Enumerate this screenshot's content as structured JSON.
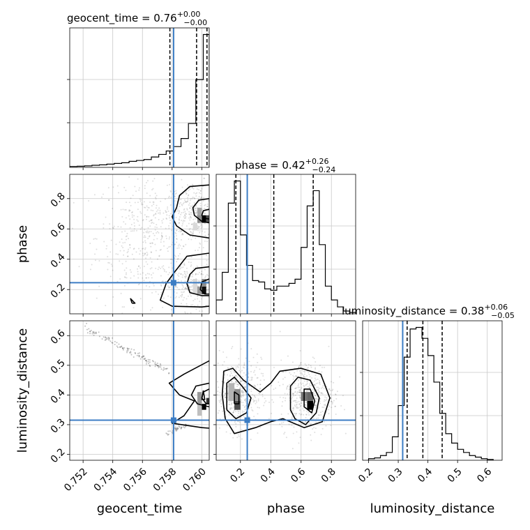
{
  "chart_data": {
    "type": "corner",
    "parameters": [
      "geocent_time",
      "phase",
      "luminosity_distance"
    ],
    "truth": {
      "geocent_time": 0.7581,
      "phase": 0.245,
      "luminosity_distance": 0.315
    },
    "truth_color": "#3c7dc4",
    "titles": [
      {
        "param": "geocent_time",
        "main": "geocent_time = 0.76",
        "up": "+0.00",
        "lo": "−0.00"
      },
      {
        "param": "phase",
        "main": "phase = 0.42",
        "up": "+0.26",
        "lo": "−0.24"
      },
      {
        "param": "luminosity_distance",
        "main": "luminosity_distance = 0.38",
        "up": "+0.06",
        "lo": "−0.05"
      }
    ],
    "xlabels": [
      "geocent_time",
      "phase",
      "luminosity_distance"
    ],
    "ylabels": [
      "phase",
      "luminosity_distance"
    ],
    "ranges": {
      "geocent_time": [
        0.7511,
        0.7605
      ],
      "phase": [
        0.04,
        0.96
      ],
      "luminosity_distance": [
        0.18,
        0.65
      ]
    },
    "ticks": {
      "geocent_time": [
        "0.752",
        "0.754",
        "0.756",
        "0.758",
        "0.760"
      ],
      "phase": [
        "0.2",
        "0.4",
        "0.6",
        "0.8"
      ],
      "luminosity_distance_x": [
        "0.2",
        "0.3",
        "0.4",
        "0.5",
        "0.6"
      ],
      "luminosity_distance_y": [
        "0.2",
        "0.3",
        "0.4",
        "0.5",
        "0.6"
      ]
    },
    "quantile_lines": {
      "geocent_time": [
        0.75785,
        0.75965,
        0.76035
      ],
      "phase": [
        0.17,
        0.42,
        0.68
      ],
      "luminosity_distance": [
        0.33,
        0.383,
        0.448
      ]
    },
    "hist_geocent_time": {
      "edges": [
        0.7511,
        0.7516,
        0.7521,
        0.7526,
        0.7531,
        0.7536,
        0.7541,
        0.7546,
        0.7551,
        0.7556,
        0.7561,
        0.7566,
        0.7571,
        0.7576,
        0.7581,
        0.7586,
        0.7591,
        0.7596,
        0.7601,
        0.7605
      ],
      "counts": [
        0.8,
        1.0,
        1.3,
        1.8,
        2.2,
        2.8,
        3.4,
        4.0,
        5.2,
        6.0,
        6.8,
        9.0,
        11.2,
        14.2,
        18.0,
        25.0,
        38.0,
        76.0,
        115.0
      ]
    },
    "hist_phase": {
      "edges": [
        0.04,
        0.08,
        0.12,
        0.16,
        0.2,
        0.24,
        0.28,
        0.32,
        0.36,
        0.4,
        0.44,
        0.48,
        0.52,
        0.56,
        0.6,
        0.64,
        0.68,
        0.72,
        0.76,
        0.8,
        0.84,
        0.88,
        0.92,
        0.96
      ],
      "counts": [
        10,
        30,
        80,
        96,
        57,
        35,
        24,
        23,
        18,
        17,
        20,
        20,
        22,
        25,
        48,
        78,
        89,
        50,
        20,
        10,
        5,
        2,
        1
      ]
    },
    "hist_luminosity_distance": {
      "edges": [
        0.2,
        0.22,
        0.24,
        0.26,
        0.28,
        0.3,
        0.32,
        0.34,
        0.36,
        0.38,
        0.4,
        0.42,
        0.44,
        0.46,
        0.48,
        0.5,
        0.52,
        0.54,
        0.56,
        0.58,
        0.6,
        0.62
      ],
      "counts": [
        1,
        1.5,
        3,
        5,
        15,
        35,
        66,
        84,
        85,
        78,
        67,
        50,
        30,
        17,
        11,
        7,
        5,
        3,
        2,
        1,
        0.5
      ]
    },
    "contours_phase_vs_time": [
      [
        [
          0.7605,
          0.89
        ],
        [
          0.7592,
          0.88
        ],
        [
          0.7585,
          0.82
        ],
        [
          0.7583,
          0.74
        ],
        [
          0.758,
          0.68
        ],
        [
          0.7583,
          0.62
        ],
        [
          0.7592,
          0.56
        ],
        [
          0.7605,
          0.54
        ]
      ],
      [
        [
          0.7605,
          0.8
        ],
        [
          0.7598,
          0.79
        ],
        [
          0.7594,
          0.74
        ],
        [
          0.7595,
          0.69
        ],
        [
          0.76,
          0.65
        ],
        [
          0.7605,
          0.64
        ]
      ],
      [
        [
          0.7605,
          0.73
        ],
        [
          0.7601,
          0.72
        ],
        [
          0.76,
          0.69
        ],
        [
          0.7602,
          0.67
        ],
        [
          0.7605,
          0.665
        ]
      ],
      [
        [
          0.7605,
          0.44
        ],
        [
          0.759,
          0.42
        ],
        [
          0.7582,
          0.32
        ],
        [
          0.7576,
          0.24
        ],
        [
          0.7572,
          0.13
        ],
        [
          0.758,
          0.09
        ],
        [
          0.76,
          0.085
        ],
        [
          0.7605,
          0.09
        ]
      ],
      [
        [
          0.7605,
          0.35
        ],
        [
          0.7596,
          0.34
        ],
        [
          0.7592,
          0.3
        ],
        [
          0.759,
          0.24
        ],
        [
          0.7592,
          0.18
        ],
        [
          0.76,
          0.16
        ],
        [
          0.7605,
          0.16
        ]
      ],
      [
        [
          0.7605,
          0.27
        ],
        [
          0.76,
          0.25
        ],
        [
          0.7599,
          0.2
        ],
        [
          0.7602,
          0.17
        ],
        [
          0.7605,
          0.17
        ]
      ],
      [
        [
          0.7553,
          0.11
        ],
        [
          0.7552,
          0.14
        ],
        [
          0.7555,
          0.11
        ],
        [
          0.7553,
          0.11
        ]
      ]
    ],
    "contours_dist_vs_time": [
      [
        [
          0.7605,
          0.515
        ],
        [
          0.7588,
          0.47
        ],
        [
          0.7578,
          0.44
        ],
        [
          0.7585,
          0.4
        ],
        [
          0.7595,
          0.38
        ],
        [
          0.7588,
          0.33
        ],
        [
          0.758,
          0.305
        ],
        [
          0.76,
          0.29
        ],
        [
          0.7605,
          0.288
        ]
      ],
      [
        [
          0.7605,
          0.44
        ],
        [
          0.7596,
          0.43
        ],
        [
          0.7593,
          0.4
        ],
        [
          0.7597,
          0.37
        ],
        [
          0.7605,
          0.36
        ]
      ],
      [
        [
          0.7605,
          0.42
        ],
        [
          0.7601,
          0.41
        ],
        [
          0.76,
          0.39
        ],
        [
          0.7603,
          0.37
        ],
        [
          0.7605,
          0.37
        ]
      ],
      [
        [
          0.7601,
          0.415
        ],
        [
          0.76,
          0.385
        ],
        [
          0.7602,
          0.385
        ],
        [
          0.7601,
          0.415
        ]
      ]
    ],
    "contours_dist_vs_phase": [
      [
        [
          0.1,
          0.32
        ],
        [
          0.08,
          0.4
        ],
        [
          0.09,
          0.48
        ],
        [
          0.15,
          0.49
        ],
        [
          0.22,
          0.45
        ],
        [
          0.33,
          0.41
        ],
        [
          0.4,
          0.44
        ],
        [
          0.46,
          0.48
        ],
        [
          0.6,
          0.49
        ],
        [
          0.73,
          0.47
        ],
        [
          0.79,
          0.39
        ],
        [
          0.74,
          0.31
        ],
        [
          0.62,
          0.29
        ],
        [
          0.48,
          0.32
        ],
        [
          0.4,
          0.31
        ],
        [
          0.3,
          0.29
        ],
        [
          0.16,
          0.27
        ],
        [
          0.1,
          0.32
        ]
      ],
      [
        [
          0.11,
          0.35
        ],
        [
          0.11,
          0.44
        ],
        [
          0.16,
          0.46
        ],
        [
          0.21,
          0.43
        ],
        [
          0.27,
          0.39
        ],
        [
          0.24,
          0.34
        ],
        [
          0.17,
          0.32
        ],
        [
          0.11,
          0.35
        ]
      ],
      [
        [
          0.53,
          0.35
        ],
        [
          0.53,
          0.43
        ],
        [
          0.58,
          0.46
        ],
        [
          0.66,
          0.45
        ],
        [
          0.72,
          0.39
        ],
        [
          0.7,
          0.34
        ],
        [
          0.63,
          0.3
        ],
        [
          0.56,
          0.32
        ],
        [
          0.53,
          0.35
        ]
      ],
      [
        [
          0.62,
          0.36
        ],
        [
          0.62,
          0.42
        ],
        [
          0.66,
          0.42
        ],
        [
          0.69,
          0.38
        ],
        [
          0.67,
          0.34
        ],
        [
          0.62,
          0.36
        ]
      ],
      [
        [
          0.16,
          0.37
        ],
        [
          0.16,
          0.41
        ],
        [
          0.19,
          0.4
        ],
        [
          0.19,
          0.37
        ],
        [
          0.16,
          0.37
        ]
      ]
    ],
    "density_cells": [
      {
        "panel": "phase_vs_time",
        "x0": 0.76,
        "x1": 0.7603,
        "y0": 0.64,
        "y1": 0.69,
        "shade": 1.0
      },
      {
        "panel": "phase_vs_time",
        "x0": 0.7603,
        "x1": 0.7605,
        "y0": 0.64,
        "y1": 0.69,
        "shade": 0.7
      },
      {
        "panel": "phase_vs_time",
        "x0": 0.7597,
        "x1": 0.76,
        "y0": 0.69,
        "y1": 0.74,
        "shade": 0.35
      },
      {
        "panel": "phase_vs_time",
        "x0": 0.7597,
        "x1": 0.76,
        "y0": 0.64,
        "y1": 0.69,
        "shade": 0.45
      },
      {
        "panel": "phase_vs_time",
        "x0": 0.7594,
        "x1": 0.7597,
        "y0": 0.59,
        "y1": 0.64,
        "shade": 0.15
      },
      {
        "panel": "phase_vs_time",
        "x0": 0.76,
        "x1": 0.7603,
        "y0": 0.17,
        "y1": 0.22,
        "shade": 0.95
      },
      {
        "panel": "phase_vs_time",
        "x0": 0.7597,
        "x1": 0.76,
        "y0": 0.17,
        "y1": 0.22,
        "shade": 0.4
      },
      {
        "panel": "phase_vs_time",
        "x0": 0.76,
        "x1": 0.7603,
        "y0": 0.22,
        "y1": 0.27,
        "shade": 0.45
      },
      {
        "panel": "phase_vs_time",
        "x0": 0.7594,
        "x1": 0.7597,
        "y0": 0.17,
        "y1": 0.27,
        "shade": 0.15
      },
      {
        "panel": "dist_vs_time",
        "x0": 0.76,
        "x1": 0.7603,
        "y0": 0.35,
        "y1": 0.37,
        "shade": 1.0
      },
      {
        "panel": "dist_vs_time",
        "x0": 0.7603,
        "x1": 0.7605,
        "y0": 0.37,
        "y1": 0.39,
        "shade": 0.8
      },
      {
        "panel": "dist_vs_time",
        "x0": 0.7597,
        "x1": 0.76,
        "y0": 0.37,
        "y1": 0.41,
        "shade": 0.4
      },
      {
        "panel": "dist_vs_time",
        "x0": 0.7597,
        "x1": 0.76,
        "y0": 0.33,
        "y1": 0.37,
        "shade": 0.25
      },
      {
        "panel": "dist_vs_phase",
        "x0": 0.64,
        "x1": 0.68,
        "y0": 0.35,
        "y1": 0.38,
        "shade": 1.0
      },
      {
        "panel": "dist_vs_phase",
        "x0": 0.6,
        "x1": 0.64,
        "y0": 0.38,
        "y1": 0.41,
        "shade": 0.55
      },
      {
        "panel": "dist_vs_phase",
        "x0": 0.64,
        "x1": 0.68,
        "y0": 0.38,
        "y1": 0.41,
        "shade": 0.6
      },
      {
        "panel": "dist_vs_phase",
        "x0": 0.16,
        "x1": 0.2,
        "y0": 0.35,
        "y1": 0.38,
        "shade": 0.7
      },
      {
        "panel": "dist_vs_phase",
        "x0": 0.16,
        "x1": 0.2,
        "y0": 0.38,
        "y1": 0.42,
        "shade": 0.45
      },
      {
        "panel": "dist_vs_phase",
        "x0": 0.12,
        "x1": 0.16,
        "y0": 0.38,
        "y1": 0.44,
        "shade": 0.3
      }
    ],
    "scatter_tracks": [
      {
        "panel": "dist_vs_time",
        "from": [
          0.7521,
          0.625
        ],
        "to": [
          0.7578,
          0.48
        ],
        "n": 120,
        "spread": 0.006
      },
      {
        "panel": "dist_vs_time",
        "from": [
          0.7576,
          0.27
        ],
        "to": [
          0.759,
          0.3
        ],
        "n": 40,
        "spread": 0.004
      }
    ],
    "scatter_clouds": [
      {
        "panel": "phase_vs_time",
        "cx": 0.7565,
        "cy": 0.55,
        "sx": 0.0018,
        "sy": 0.22,
        "n": 500
      },
      {
        "panel": "phase_vs_time",
        "cx": 0.7595,
        "cy": 0.7,
        "sx": 0.001,
        "sy": 0.1,
        "n": 300
      },
      {
        "panel": "phase_vs_time",
        "cx": 0.7595,
        "cy": 0.22,
        "sx": 0.001,
        "sy": 0.08,
        "n": 300
      },
      {
        "panel": "dist_vs_phase",
        "cx": 0.18,
        "cy": 0.4,
        "sx": 0.08,
        "sy": 0.06,
        "n": 450
      },
      {
        "panel": "dist_vs_phase",
        "cx": 0.64,
        "cy": 0.4,
        "sx": 0.09,
        "sy": 0.06,
        "n": 450
      }
    ]
  }
}
